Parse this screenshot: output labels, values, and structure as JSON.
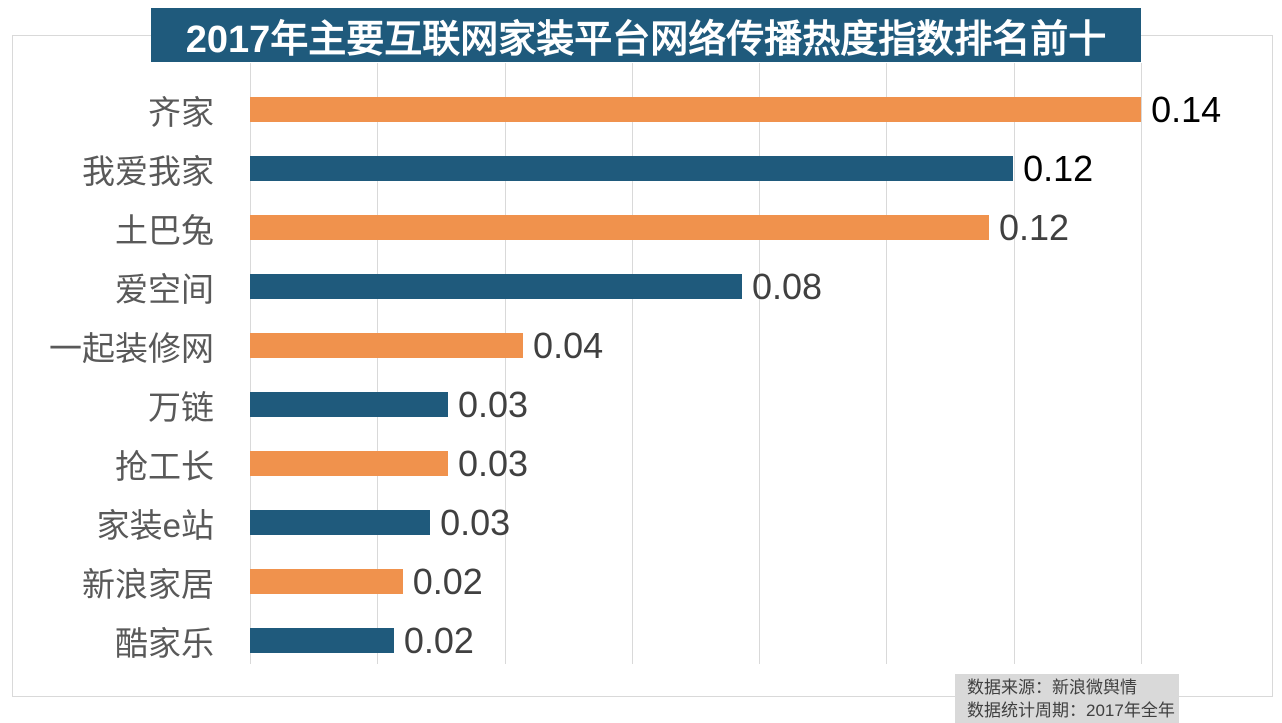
{
  "chart_data": {
    "type": "bar",
    "orientation": "horizontal",
    "title": "2017年主要互联网家装平台网络传播热度指数排名前十",
    "categories": [
      "齐家",
      "我爱我家",
      "土巴兔",
      "爱空间",
      "一起装修网",
      "万链",
      "抢工长",
      "家装e站",
      "新浪家居",
      "酷家乐"
    ],
    "values": [
      0.14,
      0.12,
      0.12,
      0.08,
      0.04,
      0.03,
      0.03,
      0.03,
      0.02,
      0.02
    ],
    "value_labels": [
      "0.14",
      "0.12",
      "0.12",
      "0.08",
      "0.04",
      "0.03",
      "0.03",
      "0.03",
      "0.02",
      "0.02"
    ],
    "bar_lengths": [
      0.14,
      0.1199,
      0.1161,
      0.0773,
      0.0429,
      0.0311,
      0.0311,
      0.0283,
      0.024,
      0.0226
    ],
    "xlabel": "",
    "ylabel": "",
    "axis": {
      "min": 0,
      "gridline_max": 0.14,
      "gridline_step": 0.02,
      "plot_max": 0.16057
    },
    "grid": true,
    "legend": null,
    "colors": {
      "odd_rows": "#f0924d",
      "even_rows": "#1f5a7c"
    },
    "value_label_colors": [
      "#000000",
      "#000000",
      "#404040",
      "#404040",
      "#404040",
      "#404040",
      "#404040",
      "#404040",
      "#404040",
      "#404040"
    ],
    "category_label_color": "#595959",
    "gridline_color": "#d9d9d9",
    "title_bg_color": "#1f5a7c",
    "title_text_color": "#ffffff"
  },
  "source": {
    "line1": "数据来源：新浪微舆情",
    "line2": "数据统计周期：2017年全年"
  }
}
